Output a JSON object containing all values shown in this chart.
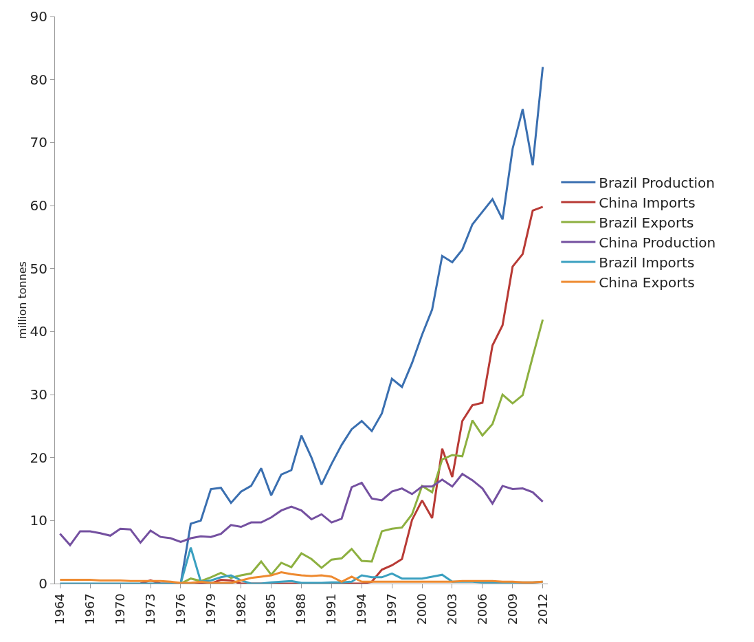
{
  "chart_data": {
    "type": "line",
    "ylabel": "million tonnes",
    "x": [
      1964,
      1965,
      1966,
      1967,
      1968,
      1969,
      1970,
      1971,
      1972,
      1973,
      1974,
      1975,
      1976,
      1977,
      1978,
      1979,
      1980,
      1981,
      1982,
      1983,
      1984,
      1985,
      1986,
      1987,
      1988,
      1989,
      1990,
      1991,
      1992,
      1993,
      1994,
      1995,
      1996,
      1997,
      1998,
      1999,
      2000,
      2001,
      2002,
      2003,
      2004,
      2005,
      2006,
      2007,
      2008,
      2009,
      2010,
      2011,
      2012
    ],
    "xlim": [
      1963.5,
      2012.5
    ],
    "xticks": [
      1964,
      1967,
      1970,
      1973,
      1976,
      1979,
      1982,
      1985,
      1988,
      1991,
      1994,
      1997,
      2000,
      2003,
      2006,
      2009,
      2012
    ],
    "ylim": [
      0,
      90
    ],
    "yticks": [
      0,
      10,
      20,
      30,
      40,
      50,
      60,
      70,
      80,
      90
    ],
    "grid": false,
    "legend": "right",
    "marker": "none",
    "line_style": "solid",
    "series": [
      {
        "name": "Brazil Production",
        "color": "#3a6fb0",
        "values": [
          null,
          null,
          null,
          null,
          null,
          null,
          null,
          null,
          null,
          null,
          null,
          null,
          0,
          9.5,
          10,
          15,
          15.2,
          12.8,
          14.6,
          15.5,
          18.3,
          14,
          17.3,
          18,
          23.5,
          20,
          15.7,
          19,
          22,
          24.5,
          25.8,
          24.2,
          27,
          32.5,
          31.2,
          35,
          39.5,
          43.5,
          52,
          51,
          53,
          57,
          59,
          61,
          57.8,
          69,
          75.3,
          66.4,
          82
        ]
      },
      {
        "name": "China Imports",
        "color": "#b83a35",
        "values": [
          null,
          null,
          null,
          null,
          null,
          null,
          null,
          null,
          0,
          0.5,
          0,
          0,
          0,
          0,
          0,
          0,
          0.6,
          0.5,
          0,
          0,
          0,
          0,
          0,
          0,
          0,
          0,
          0,
          0,
          0,
          0,
          0,
          0.3,
          2.2,
          2.9,
          3.9,
          10.1,
          13.2,
          10.4,
          21.4,
          16.9,
          25.8,
          28.3,
          28.7,
          37.8,
          41,
          50.3,
          52.3,
          59.2,
          59.8
        ]
      },
      {
        "name": "Brazil Exports",
        "color": "#8db040",
        "values": [
          null,
          null,
          null,
          null,
          null,
          null,
          null,
          null,
          null,
          null,
          null,
          null,
          0,
          0.8,
          0.4,
          1,
          1.7,
          0.9,
          1.3,
          1.6,
          3.5,
          1.4,
          3.3,
          2.6,
          4.8,
          3.9,
          2.5,
          3.8,
          4,
          5.5,
          3.6,
          3.5,
          8.3,
          8.7,
          8.9,
          11,
          15.5,
          14.5,
          19.7,
          20.4,
          20.2,
          25.9,
          23.5,
          25.3,
          30,
          28.6,
          29.9,
          36,
          41.9
        ]
      },
      {
        "name": "China Production",
        "color": "#7450a0",
        "values": [
          7.9,
          6.1,
          8.3,
          8.3,
          8,
          7.6,
          8.7,
          8.6,
          6.5,
          8.4,
          7.4,
          7.2,
          6.6,
          7.2,
          7.5,
          7.4,
          7.9,
          9.3,
          9,
          9.7,
          9.7,
          10.5,
          11.6,
          12.2,
          11.6,
          10.2,
          11,
          9.7,
          10.3,
          15.3,
          16,
          13.5,
          13.2,
          14.6,
          15.1,
          14.2,
          15.4,
          15.4,
          16.5,
          15.4,
          17.4,
          16.4,
          15.1,
          12.7,
          15.5,
          15,
          15.1,
          14.5,
          13
        ]
      },
      {
        "name": "Brazil Imports",
        "color": "#3ba0c0",
        "values": [
          0,
          0,
          0,
          0,
          0,
          0,
          0,
          0,
          0,
          0,
          0,
          0,
          0,
          5.7,
          0.3,
          0.5,
          1,
          1.3,
          0.5,
          0,
          0,
          0.2,
          0.3,
          0.4,
          0.1,
          0.1,
          0.1,
          0.2,
          0.2,
          0.3,
          1.3,
          1,
          1,
          1.6,
          0.8,
          0.8,
          0.8,
          1.1,
          1.4,
          0.3,
          0.3,
          0.3,
          0.2,
          0.2,
          0.2,
          0.2,
          0.2,
          0.2,
          0.3
        ]
      },
      {
        "name": "China Exports",
        "color": "#ee8a30",
        "values": [
          0.6,
          0.6,
          0.6,
          0.6,
          0.5,
          0.5,
          0.5,
          0.4,
          0.4,
          0.4,
          0.4,
          0.3,
          0.1,
          0.1,
          0.3,
          0.1,
          0.1,
          0.1,
          0.5,
          0.9,
          1.1,
          1.3,
          1.8,
          1.5,
          1.3,
          1.2,
          1.3,
          1.1,
          0.3,
          1.1,
          0.3,
          0.3,
          0.3,
          0.3,
          0.3,
          0.3,
          0.3,
          0.3,
          0.3,
          0.3,
          0.4,
          0.4,
          0.4,
          0.4,
          0.3,
          0.3,
          0.2,
          0.2,
          0.3
        ]
      }
    ]
  }
}
